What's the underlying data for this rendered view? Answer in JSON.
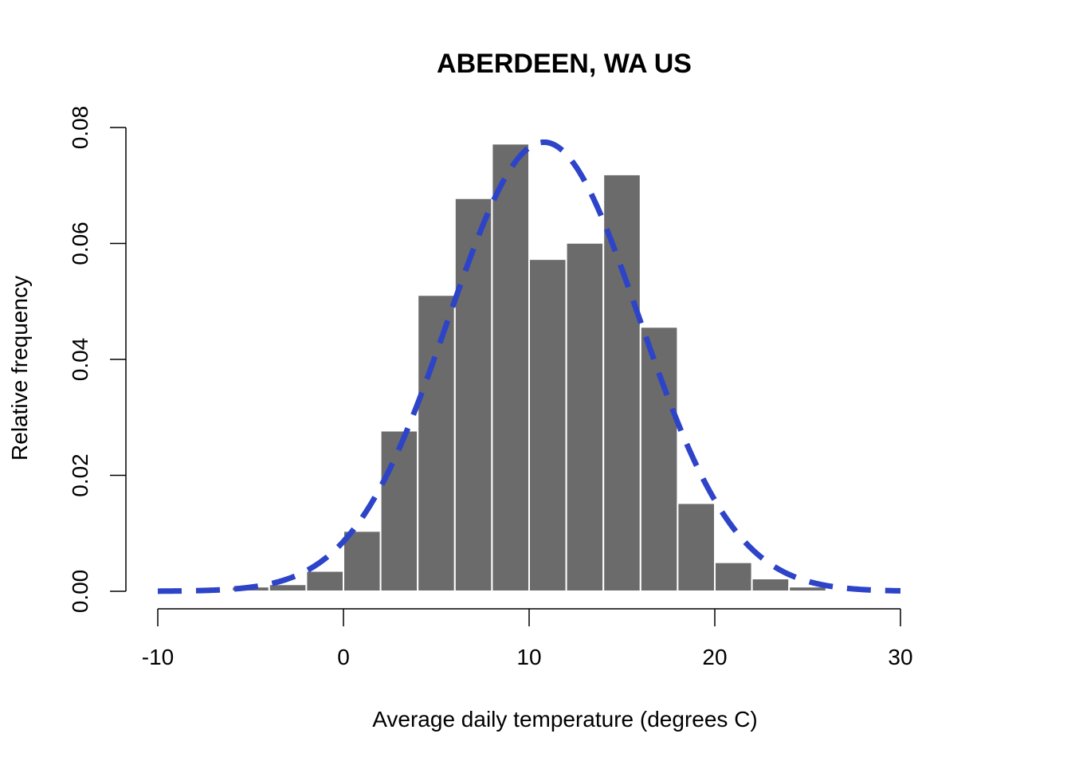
{
  "chart_data": {
    "type": "bar",
    "title": "ABERDEEN, WA US",
    "xlabel": "Average daily temperature (degrees C)",
    "ylabel": "Relative frequency",
    "xlim": [
      -10,
      30
    ],
    "ylim": [
      0,
      0.08
    ],
    "x_ticks": [
      -10,
      0,
      10,
      20,
      30
    ],
    "x_tick_labels": [
      "-10",
      "0",
      "10",
      "20",
      "30"
    ],
    "y_ticks": [
      0,
      0.02,
      0.04,
      0.06,
      0.08
    ],
    "y_tick_labels": [
      "0.00",
      "0.02",
      "0.04",
      "0.06",
      "0.08"
    ],
    "bin_width": 2,
    "bins": [
      {
        "start": -6,
        "end": -4,
        "value": 0.0008
      },
      {
        "start": -4,
        "end": -2,
        "value": 0.0012
      },
      {
        "start": -2,
        "end": 0,
        "value": 0.0035
      },
      {
        "start": 0,
        "end": 2,
        "value": 0.0104
      },
      {
        "start": 2,
        "end": 4,
        "value": 0.0277
      },
      {
        "start": 4,
        "end": 6,
        "value": 0.0511
      },
      {
        "start": 6,
        "end": 8,
        "value": 0.0678
      },
      {
        "start": 8,
        "end": 10,
        "value": 0.0772
      },
      {
        "start": 10,
        "end": 12,
        "value": 0.0573
      },
      {
        "start": 12,
        "end": 14,
        "value": 0.0601
      },
      {
        "start": 14,
        "end": 16,
        "value": 0.0719
      },
      {
        "start": 16,
        "end": 18,
        "value": 0.0456
      },
      {
        "start": 18,
        "end": 20,
        "value": 0.0152
      },
      {
        "start": 20,
        "end": 22,
        "value": 0.005
      },
      {
        "start": 22,
        "end": 24,
        "value": 0.0022
      },
      {
        "start": 24,
        "end": 26,
        "value": 0.0008
      }
    ],
    "density_curve": {
      "type": "normal",
      "mean": 10.8,
      "sd": 5.15,
      "x_range": [
        -10,
        30
      ],
      "style": "dashed"
    },
    "colors": {
      "bars": "#6b6b6b",
      "bar_border": "#ffffff",
      "curve": "#2e44c8",
      "axis": "#000000"
    }
  }
}
